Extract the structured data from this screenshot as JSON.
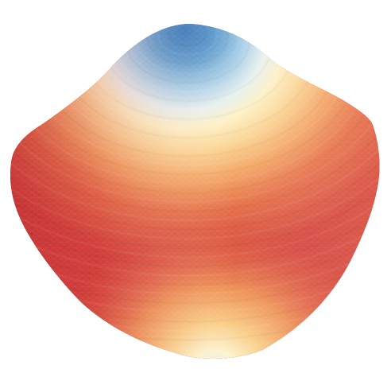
{
  "scene": {
    "background": "#ffffff",
    "colormap": [
      "#3576b8",
      "#7fb5dc",
      "#d8ebf5",
      "#fdf0c2",
      "#f8c378",
      "#ed8552",
      "#d9493a",
      "#c92f35"
    ],
    "object": "shaded-3d-mesh-blob"
  }
}
